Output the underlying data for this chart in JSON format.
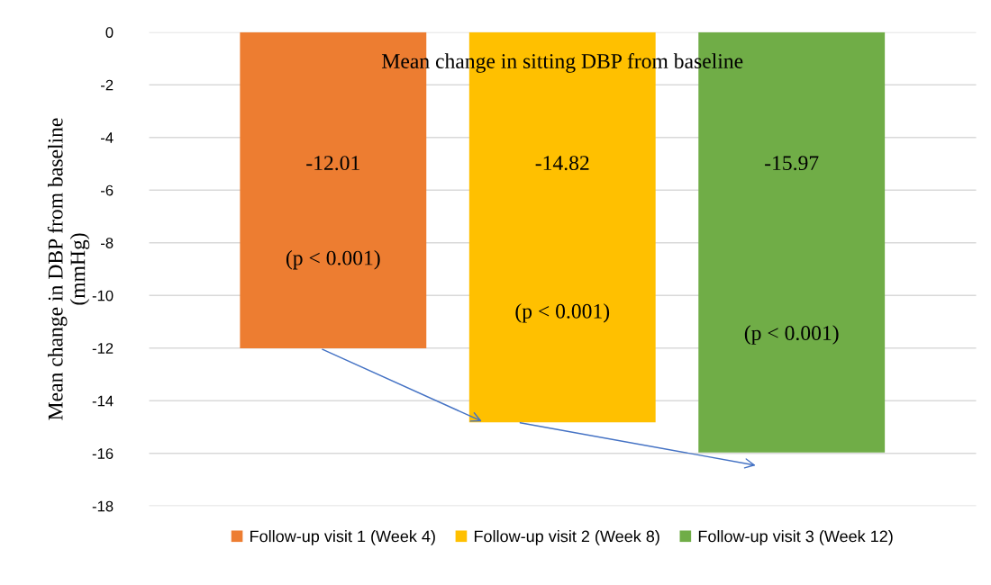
{
  "chart_data": {
    "type": "bar",
    "title": "Mean change in sitting DBP from baseline",
    "ylabel": "Mean change in DBP from baseline\n(mmHg)",
    "categories": [
      null
    ],
    "series": [
      {
        "name": "Follow-up visit 1 (Week 4)",
        "color": "#ed7d31",
        "values": [
          -12.01
        ],
        "value_labels": [
          "-12.01"
        ]
      },
      {
        "name": "Follow-up visit 2 (Week 8)",
        "color": "#ffc000",
        "values": [
          -14.82
        ],
        "value_labels": [
          "-14.82"
        ]
      },
      {
        "name": "Follow-up visit 3 (Week 12)",
        "color": "#70ad47",
        "values": [
          -15.97
        ],
        "value_labels": [
          "-15.97"
        ]
      }
    ],
    "annotations": [
      "(p < 0.001)",
      "(p < 0.001)",
      "(p < 0.001)"
    ],
    "ylim": [
      -18,
      0
    ],
    "yticks": [
      0,
      -2,
      -4,
      -6,
      -8,
      -10,
      -12,
      -14,
      -16,
      -18
    ],
    "grid": "y",
    "legend": "bottom"
  }
}
